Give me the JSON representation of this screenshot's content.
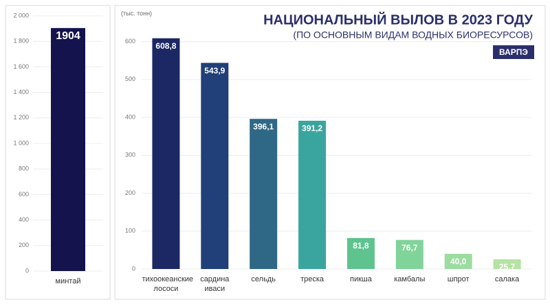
{
  "chart_data": [
    {
      "type": "bar",
      "categories": [
        "минтай"
      ],
      "values": [
        1904
      ],
      "color": "#15134d",
      "ylim": [
        0,
        2000
      ],
      "yticks": [
        0,
        200,
        400,
        600,
        800,
        {
          "value": 1000,
          "label": "1 000"
        },
        {
          "value": 1200,
          "label": "1 200"
        },
        {
          "value": 1400,
          "label": "1 400"
        },
        {
          "value": 1600,
          "label": "1 600"
        },
        {
          "value": 1800,
          "label": "1 800"
        },
        {
          "value": 2000,
          "label": "2 000"
        }
      ],
      "grid": true
    },
    {
      "type": "bar",
      "title": "НАЦИОНАЛЬНЫЙ ВЫЛОВ В 2023 ГОДУ",
      "subtitle": "(ПО ОСНОВНЫМ ВИДАМ ВОДНЫХ БИОРЕСУРСОВ)",
      "y_label": "(тыс. тонн)",
      "logo": "ВАРПЭ",
      "categories": [
        "тихоокеанские лососи",
        "сардина иваси",
        "сельдь",
        "треска",
        "пикша",
        "камбалы",
        "шпрот",
        "салака"
      ],
      "values": [
        608.8,
        543.9,
        396.1,
        391.2,
        81.8,
        76.7,
        40.0,
        25.7
      ],
      "value_labels": [
        "608,8",
        "543,9",
        "396,1",
        "391,2",
        "81,8",
        "76,7",
        "40,0",
        "25,7"
      ],
      "colors": [
        "#1b2863",
        "#213f78",
        "#2e6886",
        "#3aa59e",
        "#5ec38f",
        "#80d49a",
        "#9cdc9f",
        "#b4e3a2"
      ],
      "ylim": [
        0,
        650
      ],
      "yticks": [
        0,
        100,
        200,
        300,
        400,
        500,
        600
      ],
      "grid": true
    }
  ]
}
